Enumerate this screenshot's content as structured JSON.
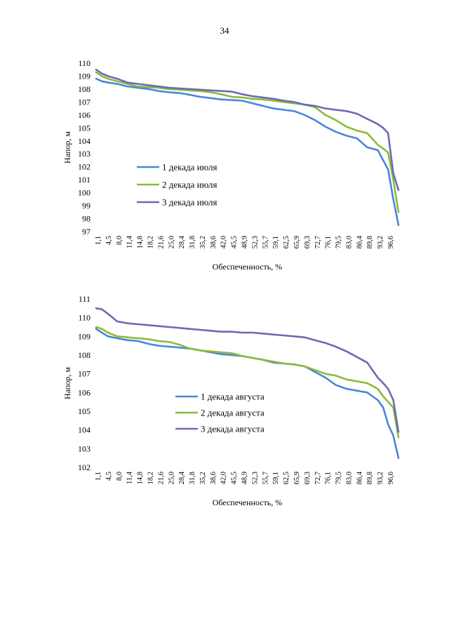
{
  "page_number": "34",
  "colors": {
    "series1": "#4a86d8",
    "series2": "#8cba3a",
    "series3": "#6b6bb3"
  },
  "chart_data": [
    {
      "type": "line",
      "title": "",
      "xlabel": "Обеспеченность, %",
      "ylabel": "Напор, м",
      "ylim": [
        97,
        110
      ],
      "yticks": [
        97,
        98,
        99,
        100,
        101,
        102,
        103,
        104,
        105,
        106,
        107,
        108,
        109,
        110
      ],
      "x_tick_labels": [
        "1,1",
        "4,5",
        "8,0",
        "11,4",
        "14,8",
        "18,2",
        "21,6",
        "25,0",
        "28,4",
        "31,8",
        "35,2",
        "38,6",
        "42,0",
        "45,5",
        "48,9",
        "52,3",
        "55,7",
        "59,1",
        "62,5",
        "65,9",
        "69,3",
        "72,7",
        "76,1",
        "79,5",
        "83,0",
        "86,4",
        "89,8",
        "93,2",
        "96,6"
      ],
      "xlim": [
        1.1,
        100
      ],
      "legend_position": "center-left",
      "series": [
        {
          "name": "1 декада июля",
          "x": [
            1.1,
            3,
            5,
            8,
            11.4,
            14.8,
            18.2,
            21.6,
            25,
            28.4,
            31.8,
            35.2,
            38.6,
            42,
            45.5,
            48.9,
            52.3,
            55.7,
            59.1,
            62.5,
            65.9,
            69.3,
            72.7,
            76.1,
            79.5,
            83,
            86.4,
            89.8,
            93.2,
            95,
            96.6,
            98.3,
            100
          ],
          "values": [
            108.8,
            108.6,
            108.5,
            108.4,
            108.2,
            108.1,
            108.0,
            107.85,
            107.75,
            107.7,
            107.55,
            107.4,
            107.3,
            107.2,
            107.15,
            107.1,
            106.9,
            106.7,
            106.5,
            106.4,
            106.3,
            106.0,
            105.6,
            105.1,
            104.7,
            104.4,
            104.2,
            103.5,
            103.3,
            102.5,
            101.8,
            99.5,
            97.5
          ]
        },
        {
          "name": "2 декада июля",
          "x": [
            1.1,
            3,
            5,
            8,
            11.4,
            14.8,
            18.2,
            21.6,
            25,
            28.4,
            31.8,
            35.2,
            38.6,
            42,
            45.5,
            48.9,
            52.3,
            55.7,
            59.1,
            62.5,
            65.9,
            69.3,
            72.7,
            76.1,
            79.5,
            83,
            86.4,
            89.8,
            93.2,
            95,
            96.6,
            98.3,
            100
          ],
          "values": [
            109.3,
            109.0,
            108.8,
            108.6,
            108.4,
            108.2,
            108.15,
            108.1,
            108.0,
            107.95,
            107.9,
            107.85,
            107.75,
            107.6,
            107.4,
            107.35,
            107.25,
            107.2,
            107.1,
            107.0,
            106.9,
            106.8,
            106.6,
            106.0,
            105.6,
            105.1,
            104.8,
            104.6,
            103.7,
            103.4,
            103.1,
            101.0,
            98.5
          ]
        },
        {
          "name": "3 декада июля",
          "x": [
            1.1,
            3,
            5,
            8,
            11.4,
            14.8,
            18.2,
            21.6,
            25,
            28.4,
            31.8,
            35.2,
            38.6,
            42,
            45.5,
            48.9,
            52.3,
            55.7,
            59.1,
            62.5,
            65.9,
            69.3,
            72.7,
            76.1,
            79.5,
            83,
            86.4,
            89.8,
            93.2,
            95,
            96.6,
            98.3,
            100
          ],
          "values": [
            109.5,
            109.2,
            109.0,
            108.8,
            108.5,
            108.4,
            108.3,
            108.2,
            108.1,
            108.05,
            108.0,
            107.95,
            107.9,
            107.85,
            107.8,
            107.6,
            107.45,
            107.35,
            107.25,
            107.1,
            107.0,
            106.8,
            106.7,
            106.5,
            106.4,
            106.3,
            106.1,
            105.7,
            105.3,
            105.0,
            104.6,
            101.5,
            100.2
          ]
        }
      ]
    },
    {
      "type": "line",
      "title": "",
      "xlabel": "Обеспеченность, %",
      "ylabel": "Напор, м",
      "ylim": [
        102,
        111
      ],
      "yticks": [
        102,
        103,
        104,
        105,
        106,
        107,
        108,
        109,
        110,
        111
      ],
      "x_tick_labels": [
        "1,1",
        "4,5",
        "8,0",
        "11,4",
        "14,8",
        "18,2",
        "21,6",
        "25,0",
        "28,4",
        "31,8",
        "35,2",
        "38,6",
        "42,0",
        "45,5",
        "48,9",
        "52,3",
        "55,7",
        "59,1",
        "62,5",
        "65,9",
        "69,3",
        "72,7",
        "76,1",
        "79,5",
        "83,0",
        "86,4",
        "89,8",
        "93,2",
        "96,6"
      ],
      "xlim": [
        1.1,
        100
      ],
      "legend_position": "center-left",
      "series": [
        {
          "name": "1 декада августа",
          "x": [
            1.1,
            3,
            5,
            8,
            11.4,
            14.8,
            18.2,
            21.6,
            25,
            28.4,
            31.8,
            35.2,
            38.6,
            42,
            45.5,
            48.9,
            52.3,
            55.7,
            59.1,
            62.5,
            65.9,
            69.3,
            72.7,
            76.1,
            79.5,
            83,
            86.4,
            89.8,
            93.2,
            95,
            96.6,
            98.3,
            100
          ],
          "values": [
            109.4,
            109.2,
            109.0,
            108.9,
            108.8,
            108.75,
            108.6,
            108.5,
            108.45,
            108.4,
            108.35,
            108.25,
            108.15,
            108.05,
            108.0,
            107.95,
            107.85,
            107.75,
            107.6,
            107.55,
            107.5,
            107.4,
            107.1,
            106.8,
            106.4,
            106.2,
            106.1,
            106.0,
            105.6,
            105.2,
            104.3,
            103.7,
            102.5
          ]
        },
        {
          "name": "2 декада августа",
          "x": [
            1.1,
            3,
            5,
            8,
            11.4,
            14.8,
            18.2,
            21.6,
            25,
            28.4,
            31.8,
            35.2,
            38.6,
            42,
            45.5,
            48.9,
            52.3,
            55.7,
            59.1,
            62.5,
            65.9,
            69.3,
            72.7,
            76.1,
            79.5,
            83,
            86.4,
            89.8,
            93.2,
            95,
            96.6,
            98.3,
            100
          ],
          "values": [
            109.5,
            109.4,
            109.2,
            109.0,
            108.95,
            108.9,
            108.85,
            108.75,
            108.7,
            108.55,
            108.35,
            108.25,
            108.2,
            108.15,
            108.1,
            107.95,
            107.85,
            107.75,
            107.65,
            107.55,
            107.5,
            107.4,
            107.2,
            107.0,
            106.9,
            106.7,
            106.6,
            106.5,
            106.2,
            105.8,
            105.5,
            105.2,
            103.6
          ]
        },
        {
          "name": "3 декада августа",
          "x": [
            1.1,
            3,
            5,
            8,
            11.4,
            14.8,
            18.2,
            21.6,
            25,
            28.4,
            31.8,
            35.2,
            38.6,
            42,
            45.5,
            48.9,
            52.3,
            55.7,
            59.1,
            62.5,
            65.9,
            69.3,
            72.7,
            76.1,
            79.5,
            83,
            86.4,
            89.8,
            93.2,
            95,
            96.6,
            98.3,
            100
          ],
          "values": [
            110.5,
            110.45,
            110.2,
            109.8,
            109.7,
            109.65,
            109.6,
            109.55,
            109.5,
            109.45,
            109.4,
            109.35,
            109.3,
            109.25,
            109.25,
            109.2,
            109.2,
            109.15,
            109.1,
            109.05,
            109.0,
            108.95,
            108.8,
            108.65,
            108.45,
            108.2,
            107.9,
            107.6,
            106.8,
            106.5,
            106.2,
            105.6,
            103.9
          ]
        }
      ]
    }
  ]
}
